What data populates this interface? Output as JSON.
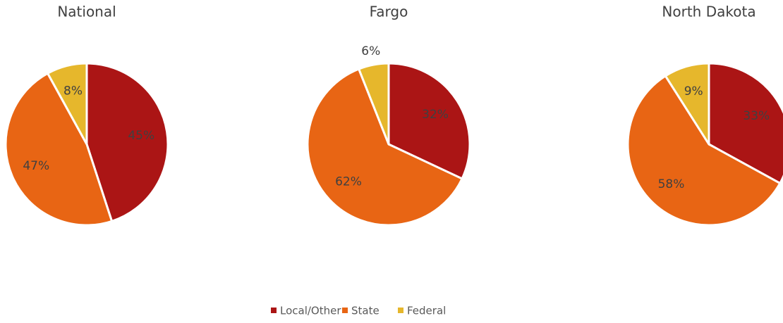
{
  "chart_data": [
    {
      "type": "pie",
      "title": "National",
      "values": [
        45,
        47,
        8
      ],
      "value_labels": [
        "45%",
        "47%",
        "8%"
      ]
    },
    {
      "type": "pie",
      "title": "Fargo",
      "values": [
        32,
        62,
        6
      ],
      "value_labels": [
        "32%",
        "62%",
        "6%"
      ]
    },
    {
      "type": "pie",
      "title": "North Dakota",
      "values": [
        33,
        58,
        9
      ],
      "value_labels": [
        "33%",
        "58%",
        "9%"
      ]
    }
  ],
  "legend": {
    "labels": [
      "Local/Other",
      "State",
      "Federal"
    ],
    "colors": [
      "#ab1515",
      "#e86514",
      "#e6b72c"
    ]
  }
}
